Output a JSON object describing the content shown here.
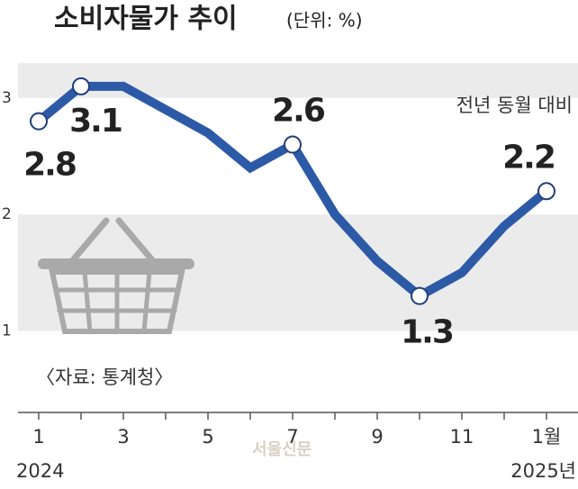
{
  "chart_data": {
    "type": "line",
    "title": "소비자물가 추이",
    "subtitle": "(단위: %)",
    "annotation": "전년 동월 대비",
    "source": "〈자료: 통계청〉",
    "watermark": "서울신문",
    "categories": [
      "1",
      null,
      "3",
      null,
      "5",
      null,
      "7",
      null,
      "9",
      null,
      "11",
      null,
      "1월"
    ],
    "year_labels": [
      "2024",
      "2025년"
    ],
    "series": [
      {
        "color": "#2c5aa6",
        "values": [
          2.8,
          3.1,
          3.1,
          2.9,
          2.7,
          2.4,
          2.6,
          2.0,
          1.6,
          1.3,
          1.5,
          1.9,
          2.2
        ],
        "value_labels": [
          2.8,
          3.1,
          null,
          null,
          null,
          null,
          2.6,
          null,
          null,
          1.3,
          null,
          null,
          2.2
        ]
      }
    ],
    "ylim": [
      0.3,
      3.3
    ],
    "yticks": [
      1,
      2,
      3
    ],
    "bands": true
  }
}
